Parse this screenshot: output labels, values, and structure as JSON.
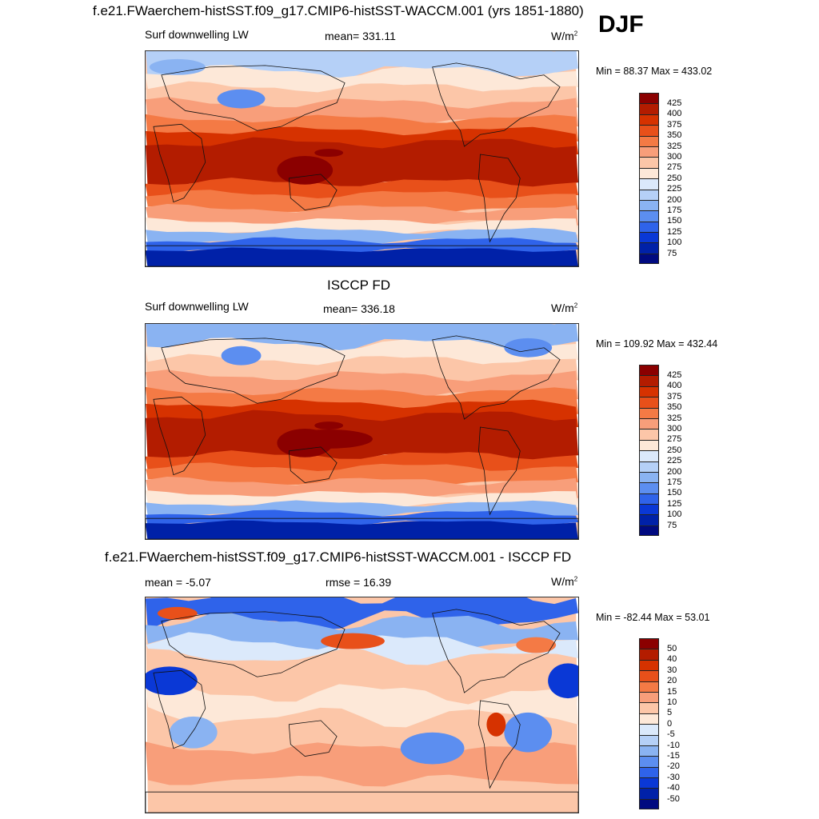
{
  "season": "DJF",
  "panels": [
    {
      "title": "f.e21.FWaerchem-histSST.f09_g17.CMIP6-histSST-WACCM.001 (yrs 1851-1880)",
      "left_label": "Surf downwelling LW",
      "center_label": "mean= 331.11",
      "units": "W/m",
      "units_sup": "2",
      "minmax": "Min =  88.37 Max = 433.02",
      "colorbar": {
        "labels": [
          "425",
          "400",
          "375",
          "350",
          "325",
          "300",
          "275",
          "250",
          "225",
          "200",
          "175",
          "150",
          "125",
          "100",
          "75"
        ],
        "colors": [
          "#8b0000",
          "#b31c00",
          "#d63200",
          "#e8501a",
          "#f47a45",
          "#f89e7a",
          "#fcc6a8",
          "#fde8d8",
          "#dbe9fb",
          "#b5d0f7",
          "#8ab3f2",
          "#5c8ef0",
          "#2f63ea",
          "#0a38d6",
          "#0021a8",
          "#000a80"
        ]
      },
      "map_style": "lw_model"
    },
    {
      "title": "ISCCP FD",
      "left_label": "Surf downwelling LW",
      "center_label": "mean= 336.18",
      "units": "W/m",
      "units_sup": "2",
      "minmax": "Min = 109.92 Max = 432.44",
      "colorbar": {
        "labels": [
          "425",
          "400",
          "375",
          "350",
          "325",
          "300",
          "275",
          "250",
          "225",
          "200",
          "175",
          "150",
          "125",
          "100",
          "75"
        ],
        "colors": [
          "#8b0000",
          "#b31c00",
          "#d63200",
          "#e8501a",
          "#f47a45",
          "#f89e7a",
          "#fcc6a8",
          "#fde8d8",
          "#dbe9fb",
          "#b5d0f7",
          "#8ab3f2",
          "#5c8ef0",
          "#2f63ea",
          "#0a38d6",
          "#0021a8",
          "#000a80"
        ]
      },
      "map_style": "lw_obs"
    },
    {
      "title": "f.e21.FWaerchem-histSST.f09_g17.CMIP6-histSST-WACCM.001 - ISCCP FD",
      "left_label": "mean =  -5.07",
      "center_label": "rmse =  16.39",
      "units": "W/m",
      "units_sup": "2",
      "minmax": "Min = -82.44 Max =  53.01",
      "colorbar": {
        "labels": [
          "50",
          "40",
          "30",
          "20",
          "15",
          "10",
          "5",
          "0",
          "-5",
          "-10",
          "-15",
          "-20",
          "-30",
          "-40",
          "-50"
        ],
        "colors": [
          "#8b0000",
          "#b31c00",
          "#d63200",
          "#e8501a",
          "#f47a45",
          "#f89e7a",
          "#fcc6a8",
          "#fde8d8",
          "#dbe9fb",
          "#b5d0f7",
          "#8ab3f2",
          "#5c8ef0",
          "#2f63ea",
          "#0a38d6",
          "#0021a8",
          "#000a80"
        ]
      },
      "map_style": "diff"
    }
  ]
}
